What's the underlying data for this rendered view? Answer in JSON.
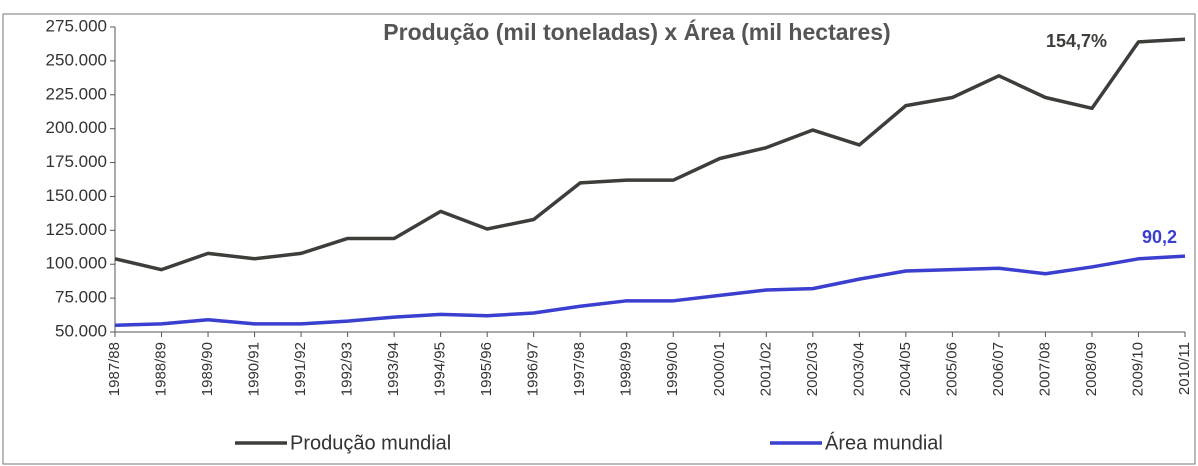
{
  "chart_data": {
    "type": "line",
    "title": "Produção (mil toneladas) x Área (mil hectares)",
    "categories": [
      "1987/88",
      "1988/89",
      "1989/90",
      "1990/91",
      "1991/92",
      "1992/93",
      "1993/94",
      "1994/95",
      "1995/96",
      "1996/97",
      "1997/98",
      "1998/99",
      "1999/00",
      "2000/01",
      "2001/02",
      "2002/03",
      "2003/04",
      "2004/05",
      "2005/06",
      "2006/07",
      "2007/08",
      "2008/09",
      "2009/10",
      "2010/11"
    ],
    "series": [
      {
        "name": "Produção mundial",
        "color": "#3d3d3a",
        "values": [
          104000,
          96000,
          108000,
          104000,
          108000,
          119000,
          119000,
          139000,
          126000,
          133000,
          160000,
          162000,
          162000,
          178000,
          186000,
          199000,
          188000,
          217000,
          223000,
          239000,
          223000,
          215000,
          264000,
          266000
        ]
      },
      {
        "name": "Área mundial",
        "color": "#3a3fd0",
        "values": [
          55000,
          56000,
          59000,
          56000,
          56000,
          58000,
          61000,
          63000,
          62000,
          64000,
          69000,
          73000,
          73000,
          77000,
          81000,
          82000,
          89000,
          95000,
          96000,
          97000,
          93000,
          98000,
          104000,
          106000
        ]
      }
    ],
    "annotations": [
      {
        "text": "154,7%",
        "series": 0
      },
      {
        "text": "90,2",
        "series": 1
      }
    ],
    "ylim": [
      50000,
      275000
    ],
    "yticks": [
      {
        "value": 50000,
        "label": "50.000"
      },
      {
        "value": 75000,
        "label": "75.000"
      },
      {
        "value": 100000,
        "label": "100.000"
      },
      {
        "value": 125000,
        "label": "125.000"
      },
      {
        "value": 150000,
        "label": "150.000"
      },
      {
        "value": 175000,
        "label": "175.000"
      },
      {
        "value": 200000,
        "label": "200.000"
      },
      {
        "value": 225000,
        "label": "225.000"
      },
      {
        "value": 250000,
        "label": "250.000"
      },
      {
        "value": 275000,
        "label": "275.000"
      }
    ],
    "grid": false
  }
}
